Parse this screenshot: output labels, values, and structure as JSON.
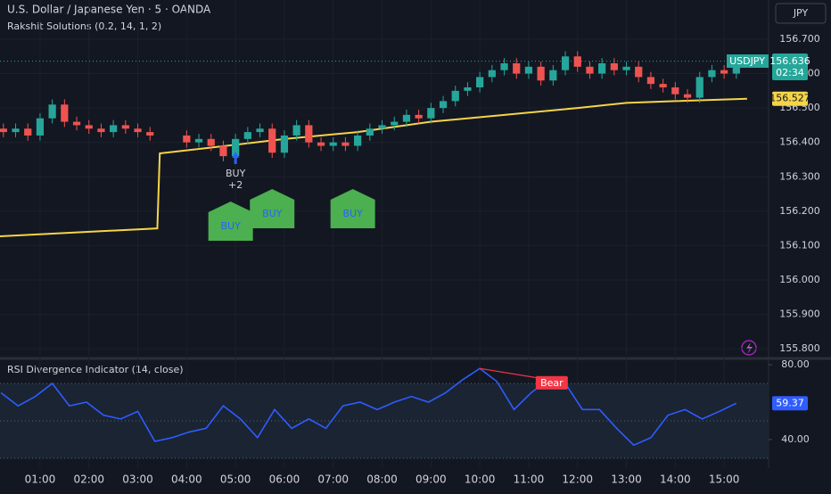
{
  "chart_data": [
    {
      "type": "candlestick",
      "title": "U.S. Dollar / Japanese Yen · 5 · OANDA",
      "subtitle": "Rakshit Solutions (0.2, 14, 1, 2)",
      "currency_button": "JPY",
      "symbol_label": "USDJPY",
      "countdown": "02:34",
      "x": [
        0.25,
        0.5,
        0.75,
        1.0,
        1.25,
        1.5,
        1.75,
        2.0,
        2.25,
        2.5,
        2.75,
        3.0,
        3.25,
        4.0,
        4.25,
        4.5,
        4.75,
        5.0,
        5.25,
        5.5,
        5.75,
        6.0,
        6.25,
        6.5,
        6.75,
        7.0,
        7.25,
        7.5,
        7.75,
        8.0,
        8.25,
        8.5,
        8.75,
        9.0,
        9.25,
        9.5,
        9.75,
        10.0,
        10.25,
        10.5,
        10.75,
        11.0,
        11.25,
        11.5,
        11.75,
        12.0,
        12.25,
        12.5,
        12.75,
        13.0,
        13.25,
        13.5,
        13.75,
        14.0,
        14.25,
        14.5,
        14.75,
        15.0,
        15.25
      ],
      "open": [
        156.44,
        156.43,
        156.44,
        156.42,
        156.47,
        156.51,
        156.46,
        156.45,
        156.44,
        156.43,
        156.45,
        156.44,
        156.43,
        156.42,
        156.4,
        156.41,
        156.39,
        156.36,
        156.41,
        156.43,
        156.44,
        156.37,
        156.42,
        156.45,
        156.4,
        156.39,
        156.4,
        156.39,
        156.42,
        156.44,
        156.45,
        156.46,
        156.48,
        156.47,
        156.5,
        156.52,
        156.55,
        156.56,
        156.59,
        156.61,
        156.63,
        156.6,
        156.62,
        156.58,
        156.61,
        156.65,
        156.62,
        156.6,
        156.63,
        156.61,
        156.62,
        156.59,
        156.57,
        156.56,
        156.54,
        156.53,
        156.59,
        156.61,
        156.6
      ],
      "high": [
        156.455,
        156.455,
        156.455,
        156.485,
        156.525,
        156.525,
        156.475,
        156.465,
        156.455,
        156.465,
        156.465,
        156.455,
        156.445,
        156.435,
        156.425,
        156.425,
        156.405,
        156.425,
        156.445,
        156.455,
        156.455,
        156.435,
        156.465,
        156.465,
        156.415,
        156.415,
        156.415,
        156.435,
        156.455,
        156.465,
        156.475,
        156.495,
        156.495,
        156.515,
        156.535,
        156.565,
        156.575,
        156.605,
        156.625,
        156.645,
        156.645,
        156.635,
        156.635,
        156.625,
        156.665,
        156.665,
        156.635,
        156.645,
        156.645,
        156.635,
        156.635,
        156.605,
        156.585,
        156.575,
        156.555,
        156.605,
        156.625,
        156.625,
        156.651
      ],
      "low": [
        156.415,
        156.415,
        156.405,
        156.405,
        156.455,
        156.445,
        156.435,
        156.425,
        156.415,
        156.415,
        156.425,
        156.415,
        156.405,
        156.385,
        156.385,
        156.375,
        156.345,
        156.345,
        156.395,
        156.415,
        156.355,
        156.355,
        156.405,
        156.385,
        156.375,
        156.375,
        156.375,
        156.375,
        156.405,
        156.425,
        156.435,
        156.445,
        156.455,
        156.455,
        156.485,
        156.505,
        156.535,
        156.545,
        156.575,
        156.595,
        156.585,
        156.585,
        156.565,
        156.565,
        156.595,
        156.605,
        156.585,
        156.585,
        156.595,
        156.595,
        156.575,
        156.555,
        156.545,
        156.525,
        156.515,
        156.515,
        156.575,
        156.585,
        156.585
      ],
      "close": [
        156.43,
        156.44,
        156.42,
        156.47,
        156.51,
        156.46,
        156.45,
        156.44,
        156.43,
        156.45,
        156.44,
        156.43,
        156.42,
        156.4,
        156.41,
        156.39,
        156.36,
        156.41,
        156.43,
        156.44,
        156.37,
        156.42,
        156.45,
        156.4,
        156.39,
        156.4,
        156.39,
        156.42,
        156.44,
        156.45,
        156.46,
        156.48,
        156.47,
        156.5,
        156.52,
        156.55,
        156.56,
        156.59,
        156.61,
        156.63,
        156.6,
        156.62,
        156.58,
        156.61,
        156.65,
        156.62,
        156.6,
        156.63,
        156.61,
        156.62,
        156.59,
        156.57,
        156.56,
        156.54,
        156.53,
        156.59,
        156.61,
        156.6,
        156.636
      ],
      "up_color": "#26a69a",
      "down_color": "#ef5350",
      "overlay": {
        "x": [
          0.18,
          3.4,
          3.45,
          4.5,
          6.0,
          7.5,
          9.0,
          10.5,
          12.0,
          13.0,
          14.0,
          15.47
        ],
        "values": [
          156.127,
          156.15,
          156.368,
          156.385,
          156.41,
          156.43,
          156.46,
          156.48,
          156.5,
          156.515,
          156.52,
          156.527
        ],
        "color": "#f5d547"
      },
      "buy_marker": {
        "label": "BUY",
        "count": "+2",
        "x": 5.0
      },
      "signals": [
        {
          "label": "BUY",
          "x": 4.9
        },
        {
          "label": "BUY",
          "x": 5.75
        },
        {
          "label": "BUY",
          "x": 7.4
        }
      ],
      "xlim": [
        0.18,
        15.91
      ],
      "xticks": [
        {
          "value": 1,
          "label": "01:00"
        },
        {
          "value": 2,
          "label": "02:00"
        },
        {
          "value": 3,
          "label": "03:00"
        },
        {
          "value": 4,
          "label": "04:00"
        },
        {
          "value": 5,
          "label": "05:00"
        },
        {
          "value": 6,
          "label": "06:00"
        },
        {
          "value": 7,
          "label": "07:00"
        },
        {
          "value": 8,
          "label": "08:00"
        },
        {
          "value": 9,
          "label": "09:00"
        },
        {
          "value": 10,
          "label": "10:00"
        },
        {
          "value": 11,
          "label": "11:00"
        },
        {
          "value": 12,
          "label": "12:00"
        },
        {
          "value": 13,
          "label": "13:00"
        },
        {
          "value": 14,
          "label": "14:00"
        },
        {
          "value": 15,
          "label": "15:00"
        }
      ],
      "ylim": [
        155.777,
        156.814
      ],
      "yticks": [
        {
          "value": 156.7,
          "label": "156.700"
        },
        {
          "value": 156.6,
          "label": "156.600"
        },
        {
          "value": 156.5,
          "label": "156.500"
        },
        {
          "value": 156.4,
          "label": "156.400"
        },
        {
          "value": 156.3,
          "label": "156.300"
        },
        {
          "value": 156.2,
          "label": "156.200"
        },
        {
          "value": 156.1,
          "label": "156.100"
        },
        {
          "value": 156.0,
          "label": "156.000"
        },
        {
          "value": 155.9,
          "label": "155.900"
        },
        {
          "value": 155.8,
          "label": "155.800"
        }
      ]
    },
    {
      "type": "line",
      "title": "RSI Divergence Indicator (14, close)",
      "x": [
        0.2,
        0.55,
        0.9,
        1.25,
        1.6,
        1.95,
        2.3,
        2.65,
        3.0,
        3.35,
        3.7,
        4.05,
        4.4,
        4.75,
        5.1,
        5.45,
        5.8,
        6.15,
        6.5,
        6.85,
        7.2,
        7.55,
        7.9,
        8.25,
        8.6,
        8.95,
        9.3,
        9.65,
        10.0,
        10.35,
        10.7,
        11.05,
        11.4,
        11.75,
        12.1,
        12.45,
        12.8,
        13.15,
        13.5,
        13.85,
        14.2,
        14.55,
        14.9,
        15.25
      ],
      "values": [
        65,
        58,
        63,
        70,
        58,
        60,
        53,
        51,
        55,
        39,
        41,
        44,
        46,
        58,
        51,
        41,
        56,
        46,
        51,
        46,
        58,
        60,
        56,
        60,
        63,
        60,
        65,
        72,
        78,
        71,
        56,
        65,
        72,
        70,
        56,
        56,
        46,
        37,
        41,
        53,
        56,
        51,
        55,
        59.37
      ],
      "color": "#2f5cff",
      "levels": [
        70,
        50,
        30
      ],
      "bear_divergence": {
        "label": "Bear",
        "x": [
          10.0,
          11.4
        ]
      },
      "xlim": [
        0.18,
        15.91
      ],
      "ylim": [
        27.1,
        81.9
      ],
      "yticks": [
        {
          "value": 80,
          "label": "80.00"
        },
        {
          "value": 40,
          "label": "40.00"
        }
      ]
    }
  ]
}
